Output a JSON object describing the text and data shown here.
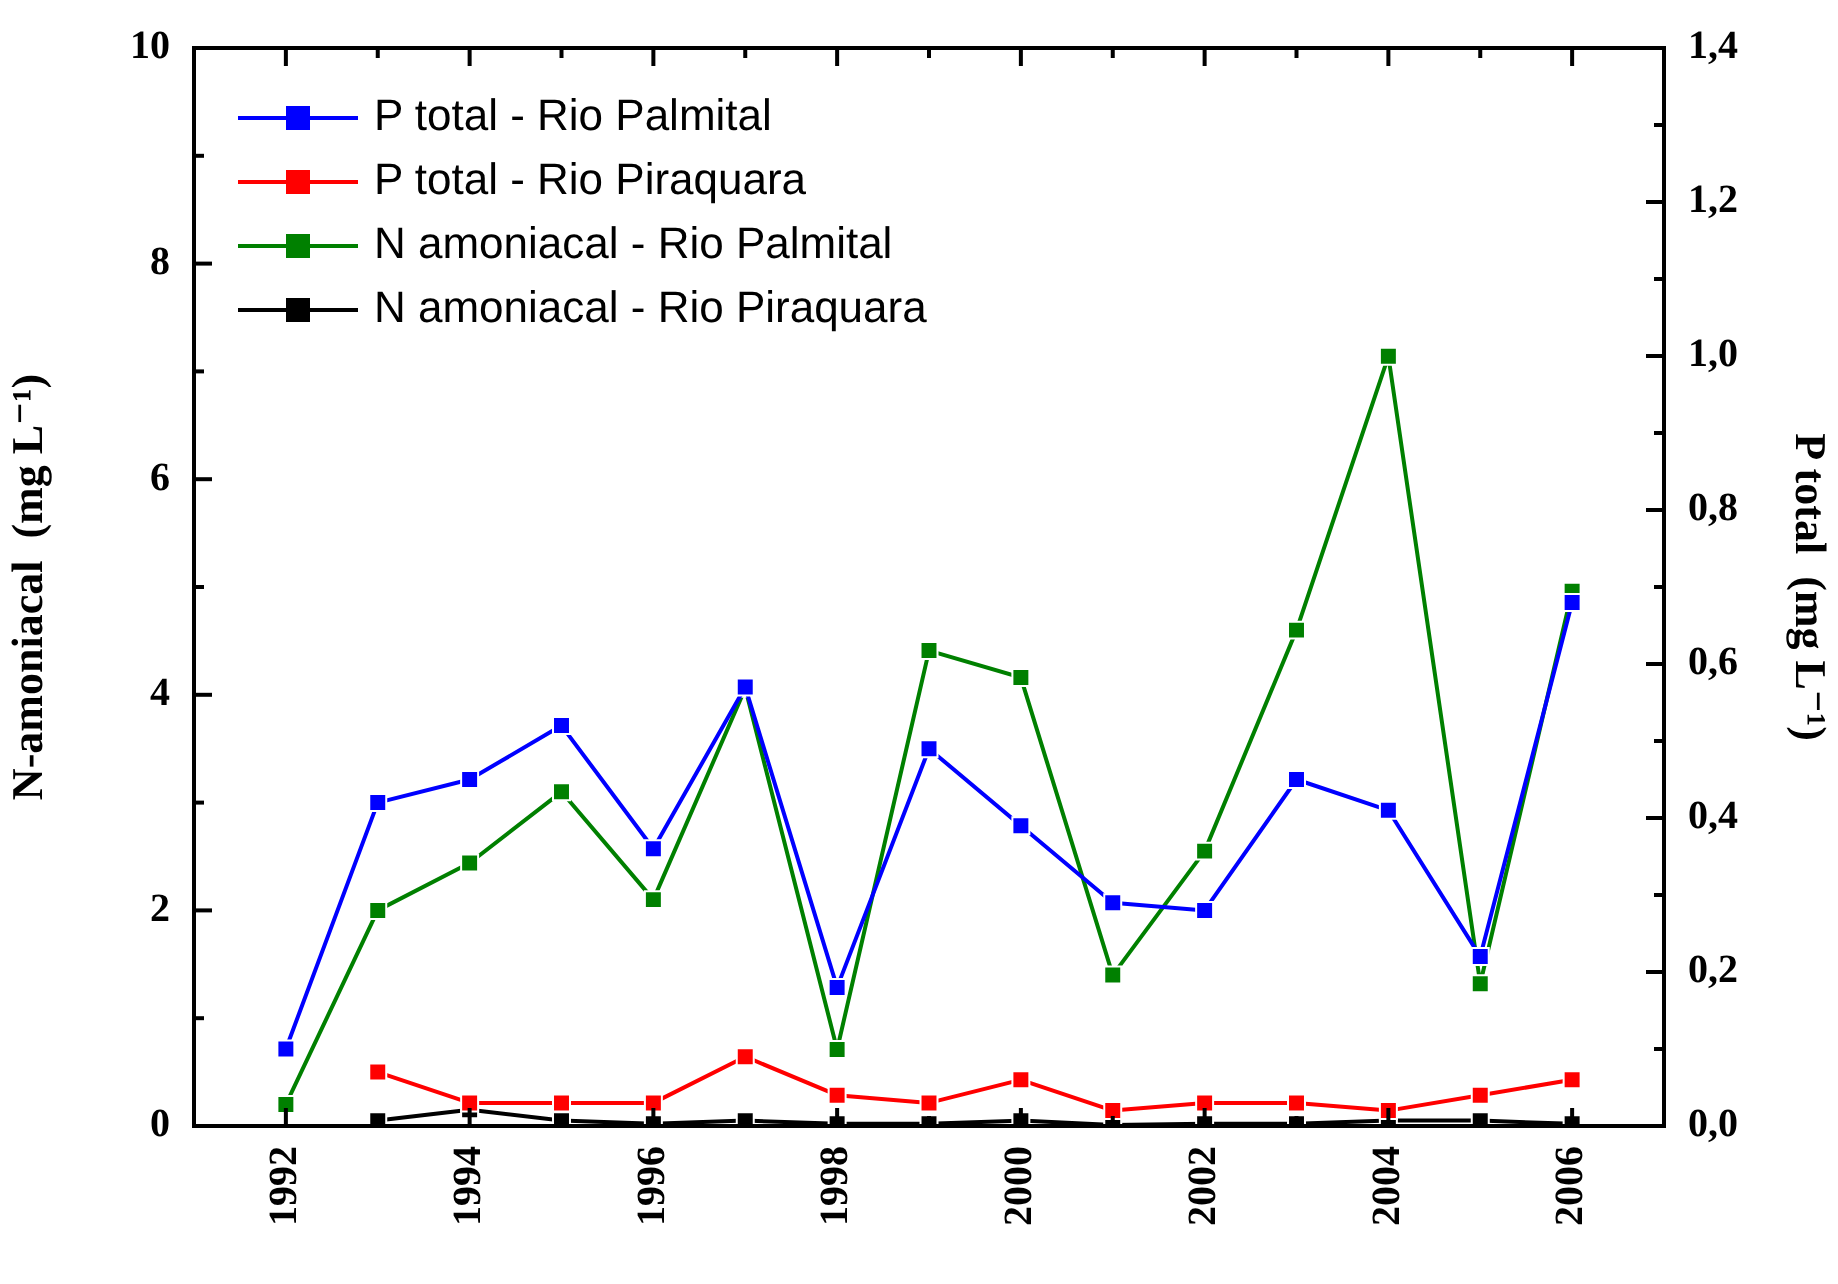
{
  "chart_data": {
    "type": "line",
    "ylabel": "N-amoniacal  (mg L⁻¹)",
    "y2label": "P total  (mg L⁻¹)",
    "x": [
      1992,
      1993,
      1994,
      1995,
      1996,
      1997,
      1998,
      1999,
      2000,
      2001,
      2002,
      2003,
      2004,
      2005,
      2006
    ],
    "xlim": [
      1991,
      2007
    ],
    "xticks": [
      1992,
      {
        "value": 1993,
        "label": null
      },
      1994,
      {
        "value": 1995,
        "label": null
      },
      1996,
      {
        "value": 1997,
        "label": null
      },
      1998,
      {
        "value": 1999,
        "label": null
      },
      2000,
      {
        "value": 2001,
        "label": null
      },
      2002,
      {
        "value": 2003,
        "label": null
      },
      2004,
      {
        "value": 2005,
        "label": null
      },
      2006
    ],
    "ylim": [
      0,
      10
    ],
    "yticks": [
      0,
      {
        "value": 1,
        "label": null
      },
      2,
      {
        "value": 3,
        "label": null
      },
      4,
      {
        "value": 5,
        "label": null
      },
      6,
      {
        "value": 7,
        "label": null
      },
      8,
      {
        "value": 9,
        "label": null
      },
      10
    ],
    "y2lim": [
      0,
      1.4
    ],
    "y2ticks": [
      {
        "value": 0,
        "label": "0,0"
      },
      {
        "value": 0.1,
        "label": null
      },
      {
        "value": 0.2,
        "label": "0,2"
      },
      {
        "value": 0.3,
        "label": null
      },
      {
        "value": 0.4,
        "label": "0,4"
      },
      {
        "value": 0.5,
        "label": null
      },
      {
        "value": 0.6,
        "label": "0,6"
      },
      {
        "value": 0.7,
        "label": null
      },
      {
        "value": 0.8,
        "label": "0,8"
      },
      {
        "value": 0.9,
        "label": null
      },
      {
        "value": 1.0,
        "label": "1,0"
      },
      {
        "value": 1.1,
        "label": null
      },
      {
        "value": 1.2,
        "label": "1,2"
      },
      {
        "value": 1.3,
        "label": null
      },
      {
        "value": 1.4,
        "label": "1,4"
      }
    ],
    "grid": false,
    "legend": "top left",
    "marker": "square",
    "line_style": "solid",
    "series": [
      {
        "name": "P total - Rio Palmital",
        "color": "#0000ff",
        "axis": "y2",
        "values": [
          0.1,
          0.42,
          0.45,
          0.52,
          0.36,
          0.57,
          0.18,
          0.49,
          0.39,
          0.29,
          0.28,
          0.45,
          0.41,
          0.22,
          0.68
        ]
      },
      {
        "name": "P total - Rio Piraquara",
        "color": "#ff0000",
        "axis": "y2",
        "values": [
          null,
          0.07,
          0.03,
          0.03,
          0.03,
          0.09,
          0.04,
          0.03,
          0.06,
          0.02,
          0.03,
          0.03,
          0.02,
          0.04,
          0.06
        ]
      },
      {
        "name": "N amoniacal - Rio Palmital",
        "color": "#008000",
        "values": [
          0.2,
          2.0,
          2.44,
          3.1,
          2.1,
          4.06,
          0.71,
          4.41,
          4.16,
          1.4,
          2.55,
          4.6,
          7.14,
          1.32,
          4.96
        ]
      },
      {
        "name": "N amoniacal - Rio Piraquara",
        "color": "#000000",
        "values": [
          null,
          0.05,
          0.15,
          0.05,
          0.02,
          0.05,
          0.02,
          0.02,
          0.05,
          0.01,
          0.02,
          0.02,
          0.05,
          0.05,
          0.02
        ]
      }
    ]
  }
}
